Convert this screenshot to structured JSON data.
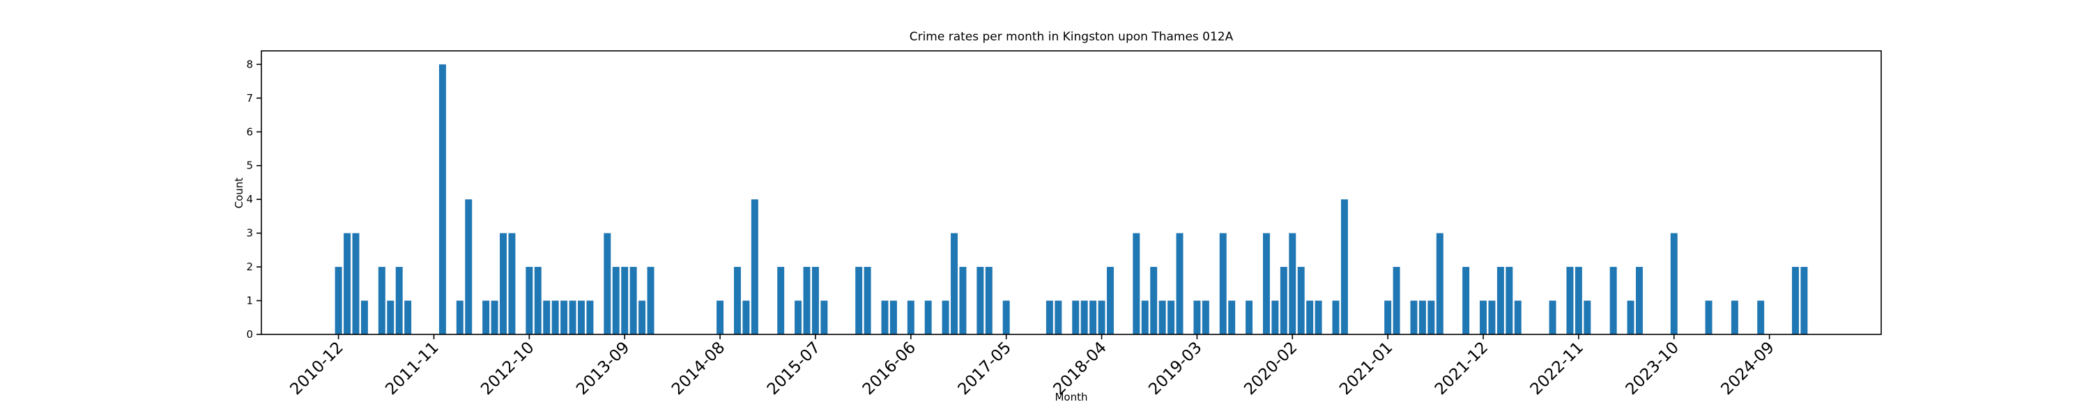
{
  "chart_data": {
    "type": "bar",
    "title": "Crime rates per month in Kingston upon Thames 012A",
    "xlabel": "Month",
    "ylabel": "Count",
    "color": "#1f77b4",
    "categories": [
      "2010-12",
      null,
      null,
      null,
      null,
      null,
      null,
      null,
      null,
      null,
      null,
      "2011-11",
      null,
      null,
      null,
      null,
      null,
      null,
      null,
      null,
      null,
      null,
      "2012-10",
      null,
      null,
      null,
      null,
      null,
      null,
      null,
      null,
      null,
      null,
      "2013-09",
      null,
      null,
      null,
      null,
      null,
      null,
      null,
      null,
      null,
      null,
      "2014-08",
      null,
      null,
      null,
      null,
      null,
      null,
      null,
      null,
      null,
      null,
      "2015-07",
      null,
      null,
      null,
      null,
      null,
      null,
      null,
      null,
      null,
      null,
      "2016-06",
      null,
      null,
      null,
      null,
      null,
      null,
      null,
      null,
      null,
      null,
      "2017-05",
      null,
      null,
      null,
      null,
      null,
      null,
      null,
      null,
      null,
      null,
      "2018-04",
      null,
      null,
      null,
      null,
      null,
      null,
      null,
      null,
      null,
      null,
      "2019-03",
      null,
      null,
      null,
      null,
      null,
      null,
      null,
      null,
      null,
      null,
      "2020-02",
      null,
      null,
      null,
      null,
      null,
      null,
      null,
      null,
      null,
      null,
      "2021-01",
      null,
      null,
      null,
      null,
      null,
      null,
      null,
      null,
      null,
      null,
      "2021-12",
      null,
      null,
      null,
      null,
      null,
      null,
      null,
      null,
      null,
      null,
      "2022-11",
      null,
      null,
      null,
      null,
      null,
      null,
      null,
      null,
      null,
      null,
      "2023-10",
      null,
      null,
      null,
      null,
      null,
      null,
      null,
      null,
      null,
      null,
      "2024-09",
      null,
      null,
      null,
      null
    ],
    "values": [
      2,
      3,
      3,
      1,
      0,
      2,
      1,
      2,
      1,
      0,
      0,
      0,
      8,
      0,
      1,
      4,
      0,
      1,
      1,
      3,
      3,
      0,
      2,
      2,
      1,
      1,
      1,
      1,
      1,
      1,
      0,
      3,
      2,
      2,
      2,
      1,
      2,
      0,
      0,
      0,
      0,
      0,
      0,
      0,
      1,
      0,
      2,
      1,
      4,
      0,
      0,
      2,
      0,
      1,
      2,
      2,
      1,
      0,
      0,
      0,
      2,
      2,
      0,
      1,
      1,
      0,
      1,
      0,
      1,
      0,
      1,
      3,
      2,
      0,
      2,
      2,
      0,
      1,
      0,
      0,
      0,
      0,
      1,
      1,
      0,
      1,
      1,
      1,
      1,
      2,
      0,
      0,
      3,
      1,
      2,
      1,
      1,
      3,
      0,
      1,
      1,
      0,
      3,
      1,
      0,
      1,
      0,
      3,
      1,
      2,
      3,
      2,
      1,
      1,
      0,
      1,
      4,
      0,
      0,
      0,
      0,
      1,
      2,
      0,
      1,
      1,
      1,
      3,
      0,
      0,
      2,
      0,
      1,
      1,
      2,
      2,
      1,
      0,
      0,
      0,
      1,
      0,
      2,
      2,
      1,
      0,
      0,
      2,
      0,
      1,
      2,
      0,
      0,
      0,
      3,
      0,
      0,
      0,
      1,
      0,
      0,
      1,
      0,
      0,
      1,
      0,
      0,
      0,
      2,
      2
    ],
    "ylim": [
      0,
      8.4
    ],
    "yticks": [
      0,
      1,
      2,
      3,
      4,
      5,
      6,
      7,
      8
    ],
    "grid": false
  }
}
